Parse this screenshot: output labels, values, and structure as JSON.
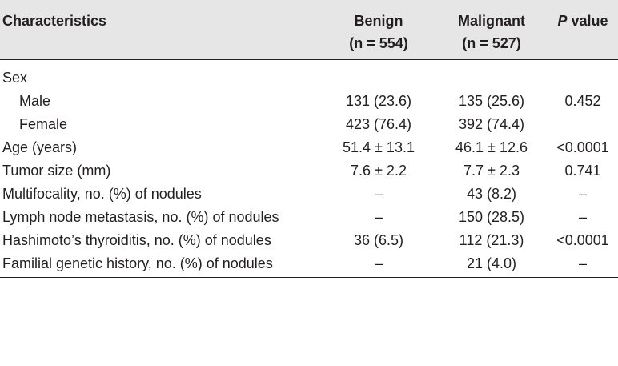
{
  "header": {
    "characteristics": "Characteristics",
    "benign": "Benign",
    "benign_n": "(n = 554)",
    "malignant": "Malignant",
    "malignant_n": "(n = 527)",
    "p_italic": "P",
    "p_rest": " value"
  },
  "rows": [
    {
      "label": "Sex",
      "benign": "",
      "malignant": "",
      "p": ""
    },
    {
      "label": "Male",
      "benign": "131 (23.6)",
      "malignant": "135 (25.6)",
      "p": "0.452"
    },
    {
      "label": "Female",
      "benign": "423 (76.4)",
      "malignant": "392 (74.4)",
      "p": ""
    },
    {
      "label": "Age (years)",
      "benign": "51.4 ± 13.1",
      "malignant": "46.1 ± 12.6",
      "p": "<0.0001"
    },
    {
      "label": "Tumor size (mm)",
      "benign": "7.6 ± 2.2",
      "malignant": "7.7 ± 2.3",
      "p": "0.741"
    },
    {
      "label": "Multifocality, no. (%) of nodules",
      "benign": "–",
      "malignant": "43 (8.2)",
      "p": "–"
    },
    {
      "label": "Lymph node metastasis, no. (%) of nodules",
      "benign": "–",
      "malignant": "150 (28.5)",
      "p": "–"
    },
    {
      "label": "Hashimoto’s thyroiditis, no. (%) of nodules",
      "benign": "36 (6.5)",
      "malignant": "112 (21.3)",
      "p": "<0.0001"
    },
    {
      "label": "Familial genetic history, no. (%) of nodules",
      "benign": "–",
      "malignant": "21 (4.0)",
      "p": "–"
    }
  ]
}
